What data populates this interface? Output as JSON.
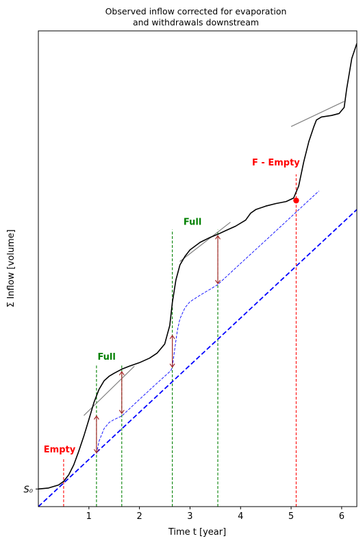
{
  "chart_data": {
    "type": "line",
    "title_line1": "Observed inflow corrected for evaporation",
    "title_line2": "and withdrawals downstream",
    "xlabel": "Time t [year]",
    "ylabel": "Σ Inflow [volume]",
    "xlim": [
      0,
      6.3
    ],
    "ylim": [
      -0.35,
      9.1
    ],
    "xticks": [
      1,
      2,
      3,
      4,
      5,
      6
    ],
    "xtick_labels": [
      "1",
      "2",
      "3",
      "4",
      "5",
      "6"
    ],
    "yticks": [
      0
    ],
    "ytick_labels": [
      "S₀"
    ],
    "grid": false,
    "colors": {
      "cumulative": "#000000",
      "demand": "#0000ff",
      "full": "#008000",
      "empty": "#ff0000",
      "arrow": "#a52a2a",
      "tangent": "#808080"
    },
    "series": [
      {
        "role": "cumulative_inflow",
        "style": "solid-black",
        "x": [
          0,
          0.2,
          0.4,
          0.5,
          0.6,
          0.7,
          0.8,
          0.9,
          1.0,
          1.1,
          1.2,
          1.3,
          1.4,
          1.5,
          1.65,
          1.8,
          2.0,
          2.2,
          2.35,
          2.5,
          2.6,
          2.65,
          2.72,
          2.8,
          2.9,
          3.0,
          3.2,
          3.4,
          3.55,
          3.7,
          3.9,
          4.1,
          4.2,
          4.3,
          4.5,
          4.7,
          4.9,
          5.05,
          5.15,
          5.25,
          5.35,
          5.45,
          5.5,
          5.6,
          5.8,
          5.95,
          6.05,
          6.1,
          6.2,
          6.3
        ],
        "y": [
          0.0,
          0.02,
          0.08,
          0.15,
          0.28,
          0.48,
          0.75,
          1.05,
          1.38,
          1.72,
          1.98,
          2.15,
          2.24,
          2.3,
          2.38,
          2.44,
          2.51,
          2.6,
          2.7,
          2.88,
          3.25,
          3.7,
          4.15,
          4.45,
          4.62,
          4.75,
          4.9,
          5.0,
          5.06,
          5.13,
          5.22,
          5.34,
          5.48,
          5.55,
          5.62,
          5.67,
          5.71,
          5.78,
          6.02,
          6.5,
          6.9,
          7.2,
          7.33,
          7.39,
          7.42,
          7.46,
          7.58,
          7.95,
          8.55,
          8.85
        ]
      },
      {
        "role": "demand_line",
        "style": "dashed-blue",
        "x": [
          0,
          6.3
        ],
        "y": [
          -0.35,
          5.55
        ]
      },
      {
        "role": "shifted_demand_curve",
        "style": "thin-dashed-blue",
        "x": [
          1.15,
          1.2,
          1.3,
          1.4,
          1.5,
          1.65,
          2.0,
          2.3,
          2.5,
          2.62,
          2.65,
          2.7,
          2.75,
          2.8,
          2.9,
          3.0,
          3.2,
          3.4,
          3.55,
          3.7,
          4.0,
          4.4,
          4.8,
          5.1,
          5.55
        ],
        "y": [
          0.7,
          0.95,
          1.2,
          1.32,
          1.38,
          1.45,
          1.78,
          2.06,
          2.24,
          2.35,
          2.42,
          2.8,
          3.15,
          3.38,
          3.6,
          3.72,
          3.85,
          3.97,
          4.06,
          4.2,
          4.48,
          4.85,
          5.22,
          5.5,
          5.92
        ]
      }
    ],
    "tangent_segments": [
      {
        "x": [
          0.9,
          1.9
        ],
        "y": [
          1.46,
          2.44
        ]
      },
      {
        "x": [
          2.8,
          3.8
        ],
        "y": [
          4.52,
          5.3
        ]
      },
      {
        "x": [
          5.0,
          6.05
        ],
        "y": [
          7.2,
          7.7
        ]
      }
    ],
    "vertical_markers": [
      {
        "x": 0.5,
        "ymin": -0.35,
        "ymax": 0.62,
        "kind": "empty"
      },
      {
        "x": 1.15,
        "ymin": -0.35,
        "ymax": 2.46,
        "kind": "full"
      },
      {
        "x": 1.65,
        "ymin": -0.35,
        "ymax": 2.46,
        "kind": "full"
      },
      {
        "x": 2.65,
        "ymin": -0.35,
        "ymax": 5.15,
        "kind": "full"
      },
      {
        "x": 3.55,
        "ymin": -0.35,
        "ymax": 5.15,
        "kind": "full"
      },
      {
        "x": 5.1,
        "ymin": -0.35,
        "ymax": 6.25,
        "kind": "empty"
      }
    ],
    "arrows": [
      {
        "x": 1.15,
        "y1": 1.45,
        "y2": 0.72
      },
      {
        "x": 1.65,
        "y1": 2.33,
        "y2": 1.5
      },
      {
        "x": 2.65,
        "y1": 3.05,
        "y2": 2.42
      },
      {
        "x": 3.55,
        "y1": 5.03,
        "y2": 4.08
      }
    ],
    "marker_points": [
      {
        "x": 5.1,
        "y": 5.73,
        "kind": "empty"
      }
    ],
    "annotations": [
      {
        "text": "Empty",
        "x": 0.42,
        "y": 0.73,
        "kind": "empty"
      },
      {
        "text": "Full",
        "x": 1.35,
        "y": 2.57,
        "kind": "full"
      },
      {
        "text": "Full",
        "x": 3.05,
        "y": 5.25,
        "kind": "full"
      },
      {
        "text": "F - Empty",
        "x": 4.7,
        "y": 6.43,
        "kind": "empty"
      }
    ]
  }
}
